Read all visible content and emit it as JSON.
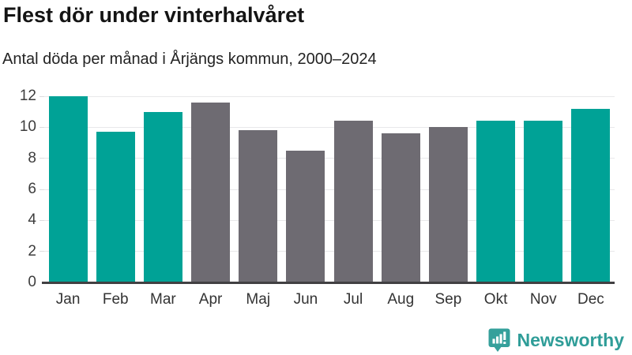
{
  "header": {
    "title": "Flest dör under vinterhalvåret",
    "subtitle": "Antal döda per månad i Årjängs kommun, 2000–2024"
  },
  "chart_data": {
    "type": "bar",
    "title": "Flest dör under vinterhalvåret",
    "subtitle": "Antal döda per månad i Årjängs kommun, 2000–2024",
    "categories": [
      "Jan",
      "Feb",
      "Mar",
      "Apr",
      "Maj",
      "Jun",
      "Jul",
      "Aug",
      "Sep",
      "Okt",
      "Nov",
      "Dec"
    ],
    "values": [
      12,
      9.7,
      11,
      11.6,
      9.8,
      8.5,
      10.4,
      9.6,
      10,
      10.4,
      10.4,
      11.2
    ],
    "highlighted": [
      true,
      true,
      true,
      false,
      false,
      false,
      false,
      false,
      false,
      true,
      true,
      true
    ],
    "highlight_color": "#00a296",
    "base_color": "#6e6b72",
    "xlabel": "",
    "ylabel": "",
    "ylim": [
      0,
      12
    ],
    "yticks": [
      0,
      2,
      4,
      6,
      8,
      10,
      12
    ],
    "grid": "horizontal",
    "legend": "none"
  },
  "footer": {
    "brand": "Newsworthy",
    "logo_icon": "bar-chart-speech-bubble-icon",
    "brand_color": "#2f9d98",
    "logo_fill": "#35a09b"
  }
}
